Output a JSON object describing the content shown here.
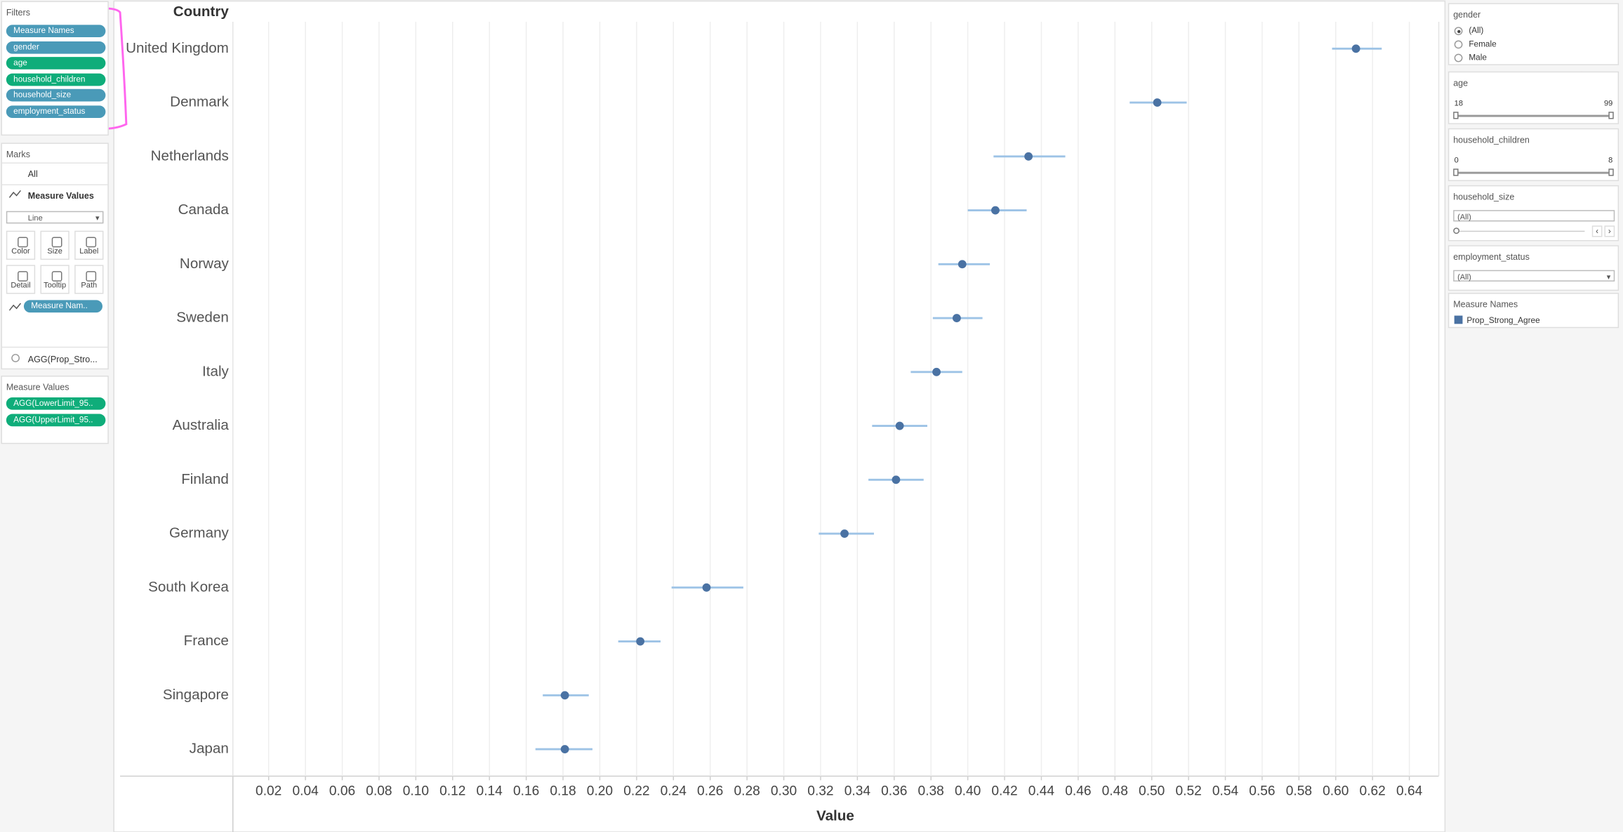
{
  "filters_pane": {
    "title": "Filters",
    "pills": [
      {
        "label": "Measure Names",
        "color": "#4a9ab8"
      },
      {
        "label": "gender",
        "color": "#4a9ab8"
      },
      {
        "label": "age",
        "color": "#0fad7a"
      },
      {
        "label": "household_children",
        "color": "#0fad7a"
      },
      {
        "label": "household_size",
        "color": "#4a9ab8"
      },
      {
        "label": "employment_status",
        "color": "#4a9ab8"
      }
    ]
  },
  "marks_pane": {
    "title": "Marks",
    "all": "All",
    "measure_values": "Measure Values",
    "mark_type": "Line",
    "buttons": [
      "Color",
      "Size",
      "Label",
      "Detail",
      "Tooltip",
      "Path"
    ],
    "path_pill": "Measure Nam..",
    "agg_field": "AGG(Prop_Stro..."
  },
  "measure_values_pane": {
    "title": "Measure Values",
    "pills": [
      {
        "label": "AGG(LowerLimit_95..",
        "color": "#0fad7a"
      },
      {
        "label": "AGG(UpperLimit_95..",
        "color": "#0fad7a"
      }
    ]
  },
  "chart_data": {
    "type": "dot-interval",
    "y_axis_label": "Country",
    "x_axis_label": "Value",
    "categories": [
      "United Kingdom",
      "Denmark",
      "Netherlands",
      "Canada",
      "Norway",
      "Sweden",
      "Italy",
      "Australia",
      "Finland",
      "Germany",
      "South Korea",
      "France",
      "Singapore",
      "Japan"
    ],
    "series": [
      {
        "name": "Prop_Strong_Agree",
        "color": "#4a72a3",
        "values": [
          0.611,
          0.503,
          0.433,
          0.415,
          0.397,
          0.394,
          0.383,
          0.363,
          0.361,
          0.333,
          0.258,
          0.222,
          0.181,
          0.181
        ]
      }
    ],
    "lower": [
      0.598,
      0.488,
      0.414,
      0.4,
      0.384,
      0.381,
      0.369,
      0.348,
      0.346,
      0.319,
      0.239,
      0.21,
      0.169,
      0.165
    ],
    "upper": [
      0.625,
      0.519,
      0.453,
      0.432,
      0.412,
      0.408,
      0.397,
      0.378,
      0.376,
      0.349,
      0.278,
      0.233,
      0.194,
      0.196
    ],
    "interval_color": "#9dc3e6",
    "xlim": [
      0,
      0.656
    ],
    "xticks": [
      0.02,
      0.04,
      0.06,
      0.08,
      {
        "value": 0.1,
        "label": "0.10"
      },
      0.12,
      0.14,
      0.16,
      0.18,
      {
        "value": 0.2,
        "label": "0.20"
      },
      0.22,
      0.24,
      0.26,
      0.28,
      {
        "value": 0.3,
        "label": "0.30"
      },
      0.32,
      0.34,
      0.36,
      0.38,
      {
        "value": 0.4,
        "label": "0.40"
      },
      0.42,
      0.44,
      0.46,
      0.48,
      {
        "value": 0.5,
        "label": "0.50"
      },
      0.52,
      0.54,
      0.56,
      0.58,
      {
        "value": 0.6,
        "label": "0.60"
      },
      0.62,
      0.64
    ],
    "grid": true
  },
  "gender_filter": {
    "title": "gender",
    "options": [
      "(All)",
      "Female",
      "Male"
    ],
    "selected": 0
  },
  "age_filter": {
    "title": "age",
    "min": 18,
    "max": 99
  },
  "household_children_filter": {
    "title": "household_children",
    "min": 0,
    "max": 8
  },
  "household_size_filter": {
    "title": "household_size",
    "value": "(All)"
  },
  "employment_status_filter": {
    "title": "employment_status",
    "value": "(All)"
  },
  "legend_pane": {
    "title": "Measure Names"
  }
}
